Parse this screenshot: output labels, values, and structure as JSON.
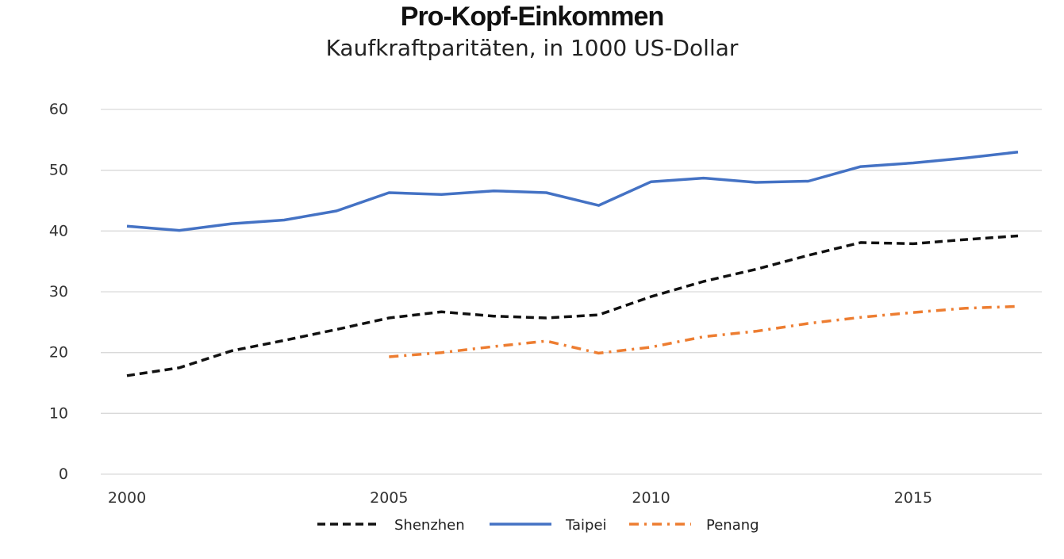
{
  "chart_data": {
    "type": "line",
    "title": "Pro-Kopf-Einkommen",
    "subtitle": "Kaufkraftparitäten, in 1000 US-Dollar",
    "xlabel": "",
    "ylabel": "",
    "xlim": [
      2000,
      2017
    ],
    "ylim": [
      0,
      60
    ],
    "x_ticks": [
      2000,
      2005,
      2010,
      2015
    ],
    "y_ticks": [
      0,
      10,
      20,
      30,
      40,
      50,
      60
    ],
    "grid": "horizontal",
    "legend_position": "bottom",
    "series": [
      {
        "name": "Shenzhen",
        "color": "#111111",
        "line_style": "dashed",
        "x": [
          2000,
          2001,
          2002,
          2003,
          2004,
          2005,
          2006,
          2007,
          2008,
          2009,
          2010,
          2011,
          2012,
          2013,
          2014,
          2015,
          2016,
          2017
        ],
        "y": [
          16.2,
          17.5,
          20.3,
          22.0,
          23.8,
          25.7,
          26.7,
          26.0,
          25.7,
          26.2,
          29.2,
          31.7,
          33.7,
          36.0,
          38.1,
          37.9,
          38.6,
          39.2
        ]
      },
      {
        "name": "Taipei",
        "color": "#4472C4",
        "line_style": "solid",
        "x": [
          2000,
          2001,
          2002,
          2003,
          2004,
          2005,
          2006,
          2007,
          2008,
          2009,
          2010,
          2011,
          2012,
          2013,
          2014,
          2015,
          2016,
          2017
        ],
        "y": [
          40.8,
          40.1,
          41.2,
          41.8,
          43.3,
          46.3,
          46.0,
          46.6,
          46.3,
          44.2,
          48.1,
          48.7,
          48.0,
          48.2,
          50.6,
          51.2,
          52.0,
          53.0
        ]
      },
      {
        "name": "Penang",
        "color": "#ED7D31",
        "line_style": "dash-dot",
        "x": [
          2005,
          2006,
          2007,
          2008,
          2009,
          2010,
          2011,
          2012,
          2013,
          2014,
          2015,
          2016,
          2017
        ],
        "y": [
          19.3,
          20.0,
          21.0,
          21.9,
          19.9,
          20.9,
          22.6,
          23.5,
          24.8,
          25.8,
          26.6,
          27.3,
          27.6
        ]
      }
    ]
  }
}
